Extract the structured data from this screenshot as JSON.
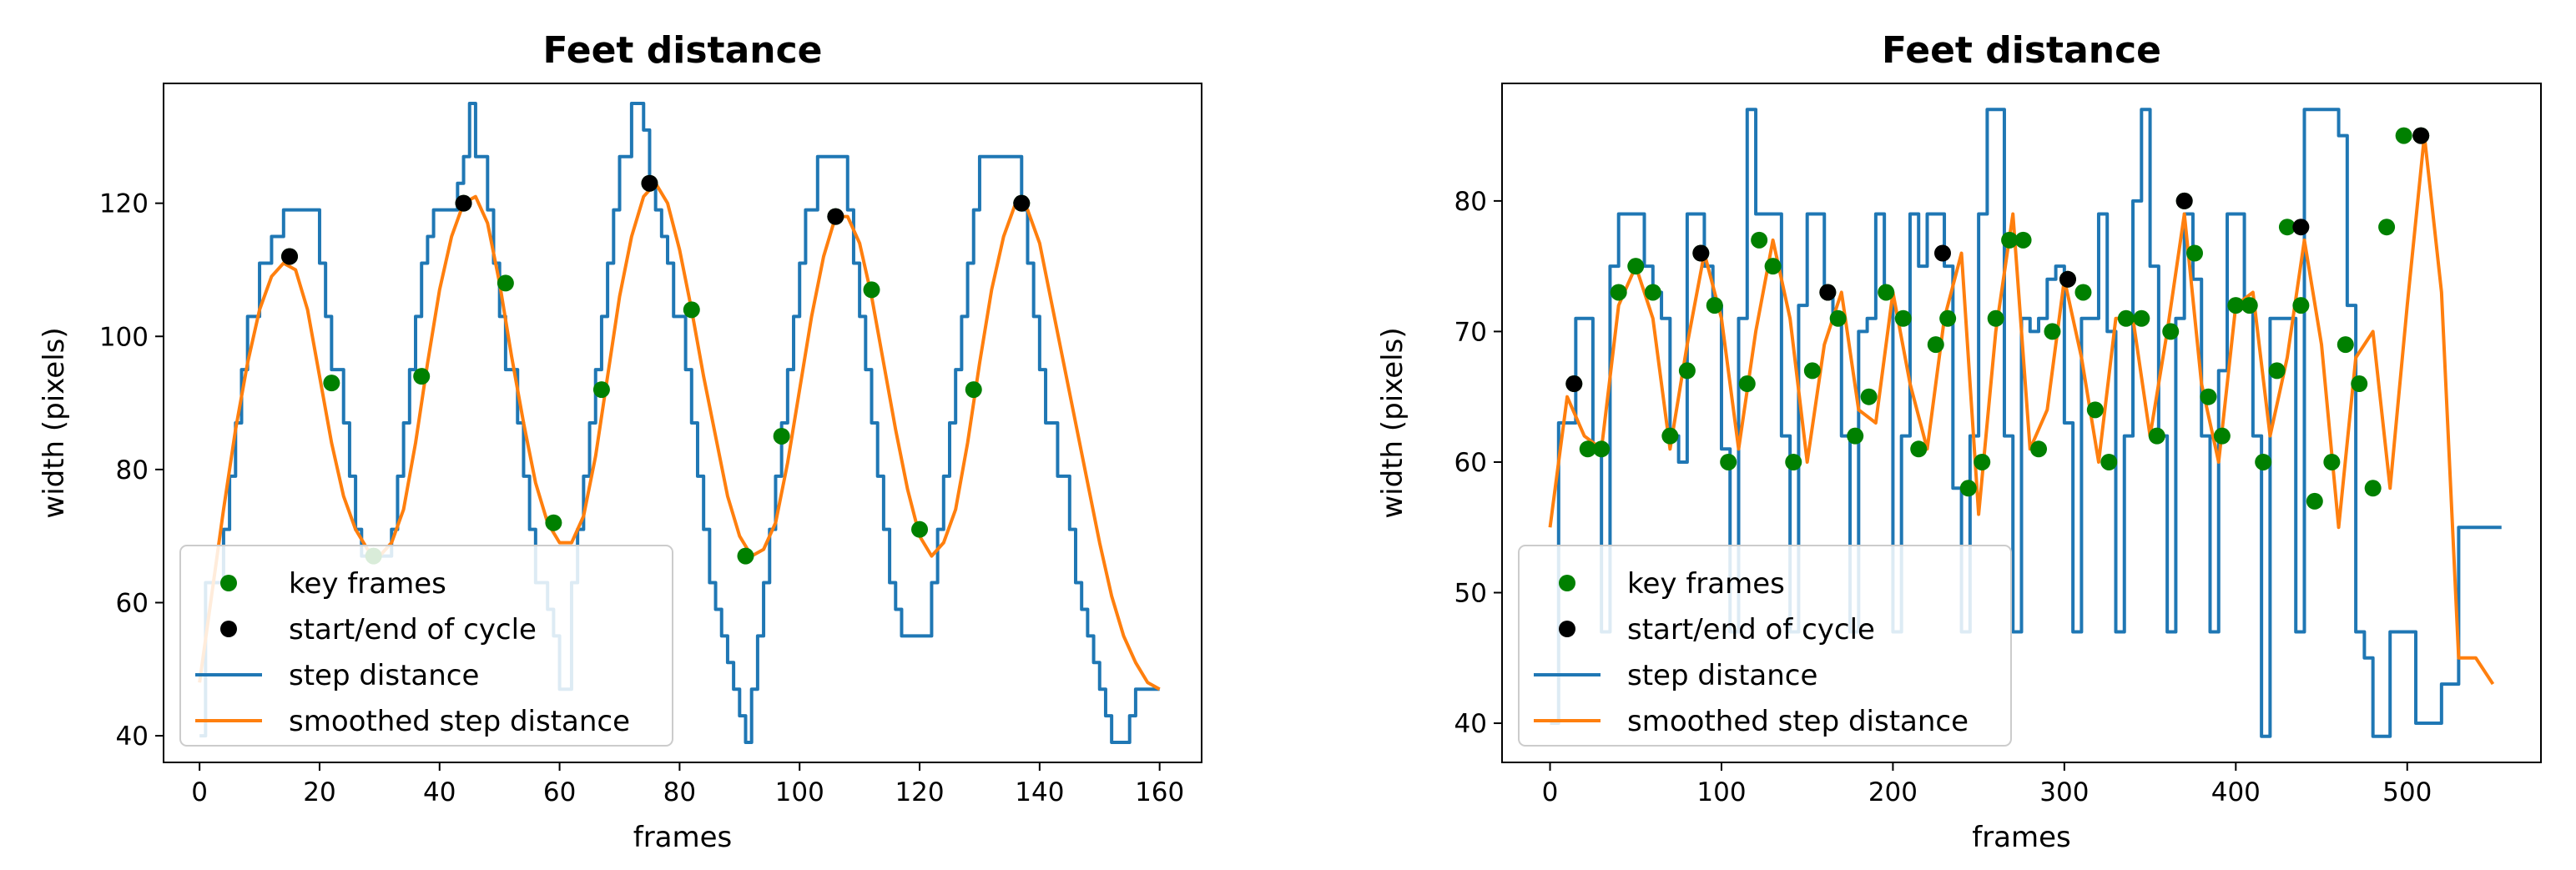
{
  "chart_data": [
    {
      "type": "line",
      "title": "Feet distance",
      "xlabel": "frames",
      "ylabel": "width (pixels)",
      "xlim": [
        -6,
        167
      ],
      "ylim": [
        36,
        138
      ],
      "xticks": [
        "0",
        "20",
        "40",
        "60",
        "80",
        "100",
        "120",
        "140",
        "160"
      ],
      "yticks": [
        "40",
        "60",
        "80",
        "100",
        "120"
      ],
      "legend": {
        "location": "lower-left",
        "entries": [
          "key frames",
          "start/end of cycle",
          "step distance",
          "smoothed step distance"
        ]
      },
      "series": [
        {
          "name": "step distance",
          "style": "step",
          "color": "#1f77b4",
          "x": [
            0,
            1,
            2,
            3,
            4,
            5,
            6,
            7,
            8,
            9,
            10,
            11,
            12,
            13,
            14,
            15,
            16,
            17,
            18,
            19,
            20,
            21,
            22,
            23,
            24,
            25,
            26,
            27,
            28,
            29,
            30,
            31,
            32,
            33,
            34,
            35,
            36,
            37,
            38,
            39,
            40,
            41,
            42,
            43,
            44,
            45,
            46,
            47,
            48,
            49,
            50,
            51,
            52,
            53,
            54,
            55,
            56,
            57,
            58,
            59,
            60,
            61,
            62,
            63,
            64,
            65,
            66,
            67,
            68,
            69,
            70,
            71,
            72,
            73,
            74,
            75,
            76,
            77,
            78,
            79,
            80,
            81,
            82,
            83,
            84,
            85,
            86,
            87,
            88,
            89,
            90,
            91,
            92,
            93,
            94,
            95,
            96,
            97,
            98,
            99,
            100,
            101,
            102,
            103,
            104,
            105,
            106,
            107,
            108,
            109,
            110,
            111,
            112,
            113,
            114,
            115,
            116,
            117,
            118,
            119,
            120,
            121,
            122,
            123,
            124,
            125,
            126,
            127,
            128,
            129,
            130,
            131,
            132,
            133,
            134,
            135,
            136,
            137,
            138,
            139,
            140,
            141,
            142,
            143,
            144,
            145,
            146,
            147,
            148,
            149,
            150,
            151,
            152,
            153,
            154,
            155,
            156,
            157,
            158,
            159,
            160
          ],
          "y": [
            40,
            63,
            63,
            63,
            71,
            79,
            87,
            95,
            103,
            103,
            111,
            111,
            115,
            115,
            119,
            119,
            119,
            119,
            119,
            119,
            111,
            103,
            95,
            95,
            87,
            79,
            71,
            67,
            67,
            67,
            67,
            67,
            71,
            79,
            87,
            95,
            103,
            111,
            115,
            119,
            119,
            119,
            119,
            123,
            127,
            135,
            127,
            127,
            119,
            111,
            103,
            95,
            95,
            87,
            79,
            71,
            63,
            63,
            59,
            55,
            47,
            47,
            63,
            71,
            79,
            87,
            95,
            103,
            111,
            119,
            127,
            127,
            135,
            135,
            131,
            123,
            119,
            115,
            111,
            103,
            103,
            95,
            87,
            79,
            71,
            63,
            59,
            55,
            51,
            47,
            43,
            39,
            47,
            55,
            63,
            71,
            79,
            87,
            95,
            103,
            111,
            119,
            119,
            127,
            127,
            127,
            127,
            127,
            119,
            111,
            103,
            95,
            87,
            79,
            71,
            63,
            59,
            55,
            55,
            55,
            55,
            55,
            63,
            71,
            79,
            87,
            95,
            103,
            111,
            119,
            127,
            127,
            127,
            127,
            127,
            127,
            127,
            119,
            111,
            103,
            95,
            87,
            87,
            79,
            79,
            71,
            63,
            59,
            55,
            51,
            47,
            43,
            39,
            39,
            39,
            43,
            47,
            47,
            47,
            47,
            47
          ],
          "values_note": "step series sampled per frame"
        },
        {
          "name": "smoothed step distance",
          "style": "line",
          "color": "#ff7f0e",
          "x": [
            0,
            2,
            4,
            6,
            8,
            10,
            12,
            14,
            16,
            18,
            20,
            22,
            24,
            26,
            28,
            30,
            32,
            34,
            36,
            38,
            40,
            42,
            44,
            46,
            48,
            50,
            52,
            54,
            56,
            58,
            60,
            62,
            64,
            66,
            68,
            70,
            72,
            74,
            76,
            78,
            80,
            82,
            84,
            86,
            88,
            90,
            92,
            94,
            96,
            98,
            100,
            102,
            104,
            106,
            108,
            110,
            112,
            114,
            116,
            118,
            120,
            122,
            124,
            126,
            128,
            130,
            132,
            134,
            136,
            138,
            140,
            142,
            144,
            146,
            148,
            150,
            152,
            154,
            156,
            158,
            160
          ],
          "y": [
            48,
            61,
            74,
            86,
            96,
            104,
            109,
            111,
            110,
            104,
            94,
            84,
            76,
            71,
            68,
            67,
            69,
            74,
            84,
            96,
            107,
            115,
            120,
            121,
            117,
            108,
            97,
            87,
            78,
            72,
            69,
            69,
            73,
            82,
            94,
            106,
            115,
            121,
            123,
            120,
            113,
            104,
            94,
            85,
            76,
            70,
            67,
            68,
            72,
            81,
            92,
            103,
            112,
            118,
            118,
            114,
            106,
            96,
            86,
            77,
            70,
            67,
            69,
            74,
            84,
            96,
            107,
            115,
            120,
            119,
            114,
            105,
            96,
            87,
            78,
            69,
            61,
            55,
            51,
            48,
            47
          ]
        }
      ],
      "scatter": [
        {
          "name": "key frames",
          "color": "#008000",
          "x": [
            15,
            22,
            29,
            37,
            44,
            51,
            59,
            67,
            75,
            82,
            91,
            97,
            106,
            112,
            120,
            129,
            137
          ],
          "y": [
            112,
            93,
            67,
            94,
            120,
            108,
            72,
            92,
            123,
            104,
            67,
            85,
            118,
            107,
            71,
            92,
            120
          ]
        },
        {
          "name": "start/end of cycle",
          "color": "#000000",
          "x": [
            15,
            44,
            75,
            106,
            137
          ],
          "y": [
            112,
            120,
            123,
            118,
            120
          ]
        }
      ]
    },
    {
      "type": "line",
      "title": "Feet distance",
      "xlabel": "frames",
      "ylabel": "width (pixels)",
      "xlim": [
        -28,
        578
      ],
      "ylim": [
        37,
        89
      ],
      "xticks": [
        "0",
        "100",
        "200",
        "300",
        "400",
        "500"
      ],
      "yticks": [
        "40",
        "50",
        "60",
        "70",
        "80"
      ],
      "legend": {
        "location": "lower-left",
        "entries": [
          "key frames",
          "start/end of cycle",
          "step distance",
          "smoothed step distance"
        ]
      },
      "series": [
        {
          "name": "step distance",
          "style": "step",
          "color": "#1f77b4",
          "x": [
            0,
            5,
            10,
            15,
            20,
            25,
            30,
            35,
            40,
            45,
            50,
            55,
            60,
            65,
            70,
            75,
            80,
            85,
            90,
            95,
            100,
            105,
            110,
            115,
            120,
            125,
            130,
            135,
            140,
            145,
            150,
            155,
            160,
            165,
            170,
            175,
            180,
            185,
            190,
            195,
            200,
            205,
            210,
            215,
            220,
            225,
            230,
            235,
            240,
            245,
            250,
            255,
            260,
            265,
            270,
            275,
            280,
            285,
            290,
            295,
            300,
            305,
            310,
            315,
            320,
            325,
            330,
            335,
            340,
            345,
            350,
            355,
            360,
            365,
            370,
            375,
            380,
            385,
            390,
            395,
            400,
            405,
            410,
            415,
            420,
            425,
            430,
            435,
            440,
            445,
            450,
            455,
            460,
            465,
            470,
            475,
            480,
            485,
            490,
            495,
            500,
            505,
            510,
            515,
            520,
            525,
            530,
            535,
            540,
            545,
            550,
            555
          ],
          "y": [
            40,
            63,
            63,
            71,
            71,
            61,
            47,
            75,
            79,
            79,
            79,
            75,
            73,
            71,
            62,
            60,
            79,
            79,
            75,
            72,
            61,
            47,
            71,
            87,
            79,
            79,
            79,
            62,
            47,
            72,
            79,
            79,
            73,
            71,
            62,
            47,
            70,
            71,
            79,
            73,
            47,
            62,
            79,
            75,
            79,
            79,
            75,
            58,
            47,
            62,
            79,
            87,
            87,
            62,
            47,
            71,
            70,
            71,
            74,
            75,
            63,
            47,
            71,
            71,
            79,
            70,
            47,
            62,
            80,
            87,
            75,
            62,
            47,
            71,
            79,
            74,
            62,
            47,
            67,
            79,
            79,
            72,
            62,
            39,
            71,
            71,
            71,
            47,
            87,
            87,
            87,
            87,
            85,
            72,
            47,
            45,
            39,
            39,
            47,
            47,
            47,
            40,
            40,
            40,
            43,
            43,
            55,
            55,
            55,
            55,
            55,
            55
          ]
        },
        {
          "name": "smoothed step distance",
          "style": "line",
          "color": "#ff7f0e",
          "x": [
            0,
            10,
            20,
            30,
            40,
            50,
            60,
            70,
            80,
            90,
            100,
            110,
            120,
            130,
            140,
            150,
            160,
            170,
            180,
            190,
            200,
            210,
            220,
            230,
            240,
            250,
            260,
            270,
            280,
            290,
            300,
            310,
            320,
            330,
            340,
            350,
            360,
            370,
            380,
            390,
            400,
            410,
            420,
            430,
            440,
            450,
            460,
            470,
            480,
            490,
            500,
            510,
            520,
            530,
            540,
            550
          ],
          "y": [
            55,
            65,
            62,
            61,
            72,
            75,
            71,
            61,
            69,
            76,
            71,
            61,
            70,
            77,
            71,
            60,
            69,
            73,
            64,
            63,
            73,
            66,
            61,
            71,
            76,
            56,
            70,
            79,
            61,
            64,
            74,
            68,
            60,
            71,
            71,
            62,
            70,
            79,
            66,
            60,
            72,
            73,
            62,
            68,
            77,
            69,
            55,
            68,
            70,
            58,
            72,
            85,
            73,
            45,
            45,
            43
          ]
        }
      ],
      "scatter": [
        {
          "name": "key frames",
          "color": "#008000",
          "x": [
            14,
            22,
            30,
            40,
            50,
            60,
            70,
            80,
            88,
            96,
            104,
            115,
            122,
            130,
            142,
            153,
            162,
            168,
            178,
            186,
            196,
            206,
            215,
            225,
            232,
            244,
            252,
            260,
            268,
            276,
            285,
            293,
            302,
            311,
            318,
            326,
            336,
            345,
            354,
            362,
            370,
            376,
            384,
            392,
            400,
            408,
            416,
            424,
            430,
            438,
            446,
            456,
            464,
            472,
            480,
            488,
            498,
            508
          ],
          "y": [
            66,
            61,
            61,
            73,
            75,
            73,
            62,
            67,
            76,
            72,
            60,
            66,
            77,
            75,
            60,
            67,
            73,
            71,
            62,
            65,
            73,
            71,
            61,
            69,
            71,
            58,
            60,
            71,
            77,
            77,
            61,
            70,
            74,
            73,
            64,
            60,
            71,
            71,
            62,
            70,
            80,
            76,
            65,
            62,
            72,
            72,
            60,
            67,
            78,
            72,
            57,
            60,
            69,
            66,
            58,
            78,
            85,
            85
          ],
          "count_note": "approximate positions"
        },
        {
          "name": "start/end of cycle",
          "color": "#000000",
          "x": [
            14,
            88,
            162,
            229,
            302,
            370,
            438,
            508
          ],
          "y": [
            66,
            76,
            73,
            76,
            74,
            80,
            78,
            85
          ]
        }
      ]
    }
  ]
}
